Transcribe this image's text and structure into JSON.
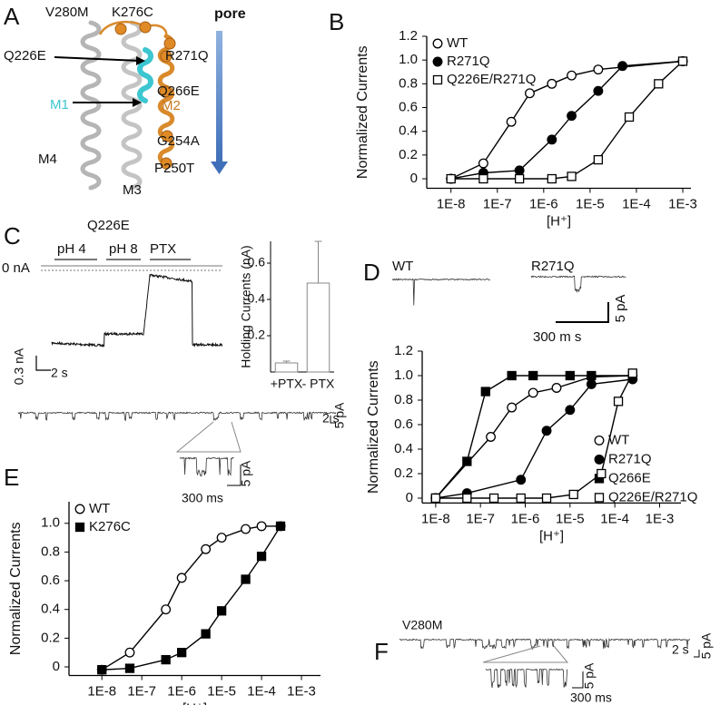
{
  "panel_letters": [
    "A",
    "B",
    "C",
    "D",
    "E",
    "F"
  ],
  "panel_a": {
    "labels": [
      "V280M",
      "K276C",
      "Q226E",
      "R271Q",
      "Q266E",
      "M1",
      "M2",
      "G254A",
      "M4",
      "P250T",
      "M3"
    ],
    "pore": "pore"
  },
  "panel_c": {
    "title": "Q226E",
    "conditions": [
      "pH 4",
      "pH 8",
      "PTX"
    ],
    "zero_label": "0 nA",
    "scale_y": "0.3 nA",
    "scale_x": "2 s",
    "trace_scale_x": "2 s",
    "trace_scale_y": "5 pA",
    "zoom_scale_y": "5 pA",
    "zoom_scale_x": "300 ms"
  },
  "panel_d": {
    "traces": [
      "WT",
      "R271Q"
    ],
    "scale_y": "5 pA",
    "scale_x": "300 m s"
  },
  "panel_f": {
    "trace": "V280M",
    "scale_x": "2 s",
    "scale_y": "5 pA",
    "zoom_scale_y": "5 pA",
    "zoom_scale_x": "300 ms"
  },
  "chart_data": [
    {
      "type": "line",
      "x_scale": "log",
      "y_label": "Normalized Currents",
      "x_label": "[H⁺]",
      "xlim": [
        3e-09,
        0.0015
      ],
      "ylim": [
        -0.08,
        1.2
      ],
      "xticks": [
        {
          "value": 1e-08,
          "label": "1E-8"
        },
        {
          "value": 1e-07,
          "label": "1E-7"
        },
        {
          "value": 1e-06,
          "label": "1E-6"
        },
        {
          "value": 1e-05,
          "label": "1E-5"
        },
        {
          "value": 0.0001,
          "label": "1E-4"
        },
        {
          "value": 0.001,
          "label": "1E-3"
        }
      ],
      "yticks": [
        0,
        0.2,
        0.4,
        0.6,
        0.8,
        {
          "value": 1,
          "label": "1.0"
        },
        1.2
      ],
      "legend": "upper left",
      "series": [
        {
          "name": "WT",
          "color": "#000000",
          "marker": "open-circle",
          "x": [
            1e-08,
            5e-08,
            2e-07,
            5e-07,
            1.5e-06,
            4e-06,
            1.5e-05,
            0.001
          ],
          "values": [
            0,
            0.13,
            0.48,
            0.72,
            0.8,
            0.87,
            0.92,
            0.99
          ]
        },
        {
          "name": "R271Q",
          "color": "#000000",
          "marker": "filled-circle",
          "x": [
            1e-08,
            5e-08,
            3e-07,
            1.5e-06,
            4e-06,
            1.5e-05,
            5e-05,
            0.001
          ],
          "values": [
            0,
            0.05,
            0.07,
            0.33,
            0.53,
            0.74,
            0.95,
            0.99
          ]
        },
        {
          "name": "Q226E/R271Q",
          "color": "#000000",
          "marker": "open-square",
          "x": [
            1e-08,
            5e-08,
            3e-07,
            1.5e-06,
            4e-06,
            1.5e-05,
            7e-05,
            0.0003,
            0.001
          ],
          "values": [
            0,
            0,
            0,
            0,
            0.02,
            0.16,
            0.52,
            0.8,
            0.99
          ]
        }
      ]
    },
    {
      "type": "bar",
      "y_label": "Holding Currents (nA)",
      "categories": [
        "+PTX",
        "- PTX"
      ],
      "values": [
        0.05,
        0.49
      ],
      "errors": [
        0.01,
        0.23
      ],
      "color": "#ffffff",
      "ylim": [
        0,
        0.72
      ],
      "yticks": [
        0.2,
        0.4,
        0.6
      ]
    },
    {
      "type": "line",
      "x_scale": "log",
      "y_label": "Normalized Currents",
      "x_label": "[H⁺]",
      "xlim": [
        5e-09,
        0.003
      ],
      "ylim": [
        -0.04,
        1.2
      ],
      "xticks": [
        {
          "value": 1e-08,
          "label": "1E-8"
        },
        {
          "value": 1e-07,
          "label": "1E-7"
        },
        {
          "value": 1e-06,
          "label": "1E-6"
        },
        {
          "value": 1e-05,
          "label": "1E-5"
        },
        {
          "value": 0.0001,
          "label": "1E-4"
        },
        {
          "value": 0.001,
          "label": "1E-3"
        }
      ],
      "yticks": [
        0,
        0.2,
        0.4,
        0.6,
        0.8,
        {
          "value": 1,
          "label": "1.0"
        },
        1.2
      ],
      "legend": "lower right",
      "series": [
        {
          "name": "WT",
          "color": "#000000",
          "marker": "open-circle",
          "x": [
            1e-08,
            1.7e-07,
            5e-07,
            1.5e-06,
            5e-06,
            3e-05,
            0.00025
          ],
          "values": [
            0,
            0.5,
            0.74,
            0.86,
            0.9,
            0.99,
            1.0
          ]
        },
        {
          "name": "R271Q",
          "color": "#000000",
          "marker": "filled-circle",
          "x": [
            1e-08,
            5e-08,
            8e-07,
            3e-06,
            1e-05,
            3e-05,
            0.00025
          ],
          "values": [
            0,
            0.04,
            0.15,
            0.55,
            0.72,
            0.93,
            0.97
          ]
        },
        {
          "name": "Q266E",
          "color": "#000000",
          "marker": "filled-square",
          "x": [
            1e-08,
            5e-08,
            1.3e-07,
            5e-07,
            1.5e-06,
            1e-05,
            3e-05,
            0.00025
          ],
          "values": [
            0,
            0.3,
            0.87,
            1.0,
            1.0,
            1.0,
            1.0,
            1.0
          ]
        },
        {
          "name": "Q226E/R271Q",
          "color": "#000000",
          "marker": "open-square",
          "x": [
            1e-08,
            5e-08,
            2e-07,
            8e-07,
            3e-06,
            1.2e-05,
            5e-05,
            0.00012,
            0.00025
          ],
          "values": [
            0,
            0,
            0,
            0,
            0,
            0.03,
            0.2,
            0.79,
            1.02
          ]
        }
      ]
    },
    {
      "type": "line",
      "x_scale": "log",
      "y_label": "Normalized Currents",
      "x_label": "[H⁺]",
      "xlim": [
        1.5e-09,
        0.003
      ],
      "ylim": [
        -0.06,
        1.15
      ],
      "xticks": [
        {
          "value": 1e-08,
          "label": "1E-8"
        },
        {
          "value": 1e-07,
          "label": "1E-7"
        },
        {
          "value": 1e-06,
          "label": "1E-6"
        },
        {
          "value": 1e-05,
          "label": "1E-5"
        },
        {
          "value": 0.0001,
          "label": "1E-4"
        },
        {
          "value": 0.001,
          "label": "1E-3"
        }
      ],
      "yticks": [
        0,
        0.2,
        0.4,
        0.6,
        0.8,
        {
          "value": 1,
          "label": "1.0"
        }
      ],
      "legend": "upper left",
      "series": [
        {
          "name": "WT",
          "color": "#000000",
          "marker": "open-circle",
          "x": [
            1e-08,
            5e-08,
            4e-07,
            1e-06,
            4e-06,
            1e-05,
            4e-05,
            0.0001,
            0.0003
          ],
          "values": [
            -0.02,
            0.1,
            0.4,
            0.62,
            0.82,
            0.9,
            0.96,
            0.98,
            0.98
          ]
        },
        {
          "name": "K276C",
          "color": "#000000",
          "marker": "filled-square",
          "x": [
            1e-08,
            5e-08,
            4e-07,
            1e-06,
            4e-06,
            1e-05,
            4e-05,
            0.0001,
            0.0003
          ],
          "values": [
            -0.02,
            -0.01,
            0.05,
            0.1,
            0.23,
            0.39,
            0.61,
            0.77,
            0.98
          ]
        }
      ]
    }
  ]
}
